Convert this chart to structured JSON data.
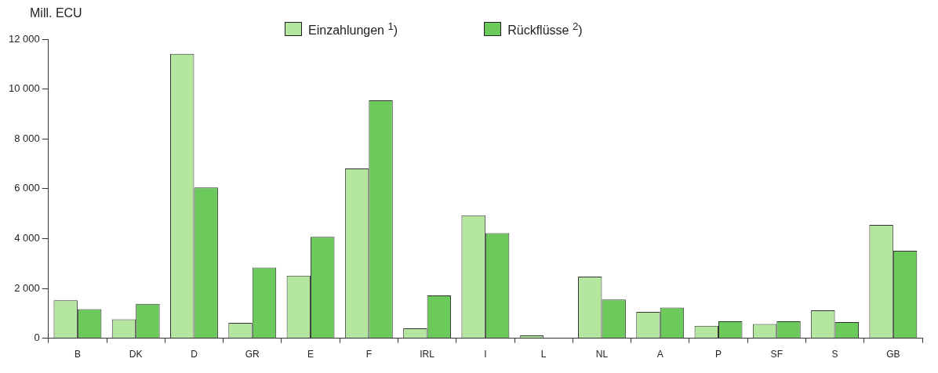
{
  "chart_data": {
    "type": "bar",
    "ylabel": "Mill. ECU",
    "categories": [
      "B",
      "DK",
      "D",
      "GR",
      "E",
      "F",
      "IRL",
      "I",
      "L",
      "NL",
      "A",
      "P",
      "SF",
      "S",
      "GB"
    ],
    "series": [
      {
        "name": "Einzahlungen $^{1}$)",
        "color": "#b5e6a0",
        "values": [
          1520,
          760,
          11410,
          620,
          2510,
          6810,
          400,
          4930,
          110,
          2470,
          1060,
          500,
          570,
          1120,
          4550
        ]
      },
      {
        "name": "Rückflüsse $^{2}$)",
        "color": "#6cc95c",
        "values": [
          1170,
          1380,
          6050,
          2830,
          4070,
          9550,
          1720,
          4220,
          null,
          1550,
          1230,
          680,
          680,
          650,
          3510
        ]
      }
    ],
    "ylim": [
      0,
      12000
    ],
    "yticks": [
      {
        "value": 0,
        "label": "0"
      },
      {
        "value": 2000,
        "label": "2 000"
      },
      {
        "value": 4000,
        "label": "4 000"
      },
      {
        "value": 6000,
        "label": "6 000"
      },
      {
        "value": 8000,
        "label": "8 000"
      },
      {
        "value": 10000,
        "label": "10 000"
      },
      {
        "value": 12000,
        "label": "12 000"
      }
    ],
    "grid": false,
    "legend": "top"
  }
}
